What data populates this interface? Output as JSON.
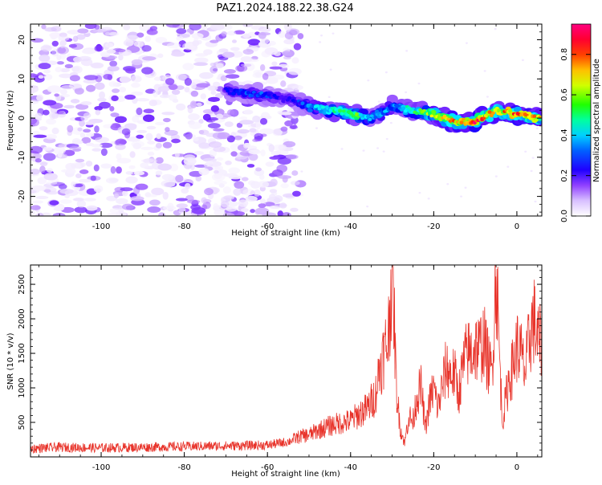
{
  "figure_title": "PAZ1.2024.188.22.38.G24",
  "chart_data": [
    {
      "type": "heatmap",
      "xlabel": "Height of straight line (km)",
      "ylabel": "Frequency (Hz)",
      "xlim": [
        -117,
        6
      ],
      "ylim": [
        -25,
        24
      ],
      "x_ticks": [
        "-100",
        "-80",
        "-60",
        "-40",
        "-20",
        "0"
      ],
      "y_ticks": [
        "-20",
        "-10",
        "0",
        "10",
        "20"
      ],
      "colorbar": {
        "label": "Normalized spectral amplitude",
        "range": [
          0.0,
          0.95
        ],
        "ticks": [
          "0.0",
          "0.2",
          "0.4",
          "0.6",
          "0.8"
        ],
        "colormap": [
          "#ffffff",
          "#e8d8ff",
          "#a060ff",
          "#6010ff",
          "#0000ff",
          "#00a0ff",
          "#00ffff",
          "#00ff60",
          "#80ff00",
          "#ffff00",
          "#ff8000",
          "#ff0000",
          "#ff0080"
        ]
      },
      "signal_ridge": {
        "description_points_x": [
          -70,
          -62,
          -55,
          -50,
          -45,
          -40,
          -35,
          -30,
          -25,
          -20,
          -15,
          -10,
          -5,
          0,
          5
        ],
        "frequency_hz": [
          7,
          6,
          5,
          3,
          2,
          1,
          0,
          3,
          2,
          1,
          -1,
          -1,
          2,
          1,
          0
        ],
        "peak_amplitude": [
          0.25,
          0.3,
          0.2,
          0.35,
          0.45,
          0.6,
          0.4,
          0.35,
          0.5,
          0.65,
          0.75,
          0.85,
          0.7,
          0.8,
          0.7
        ]
      },
      "noise_region_x": [
        -117,
        -52
      ]
    },
    {
      "type": "line",
      "xlabel": "Height of straight line (km)",
      "ylabel": "SNR (10 * v/v)",
      "xlim": [
        -117,
        6
      ],
      "ylim": [
        0,
        2780
      ],
      "x_ticks": [
        "-100",
        "-80",
        "-60",
        "-40",
        "-20",
        "0"
      ],
      "y_ticks": [
        "500",
        "1000",
        "1500",
        "2000",
        "2500"
      ],
      "color": "#e8332a",
      "series": [
        {
          "x": [
            -117,
            -110,
            -100,
            -90,
            -80,
            -70,
            -60,
            -55,
            -52,
            -50,
            -48,
            -45,
            -42,
            -40,
            -38,
            -36,
            -34,
            -33,
            -32,
            -31,
            -30,
            -29.5,
            -29,
            -28,
            -27,
            -26,
            -25,
            -24,
            -23,
            -22,
            -21,
            -20,
            -19,
            -18,
            -17,
            -16,
            -15,
            -14,
            -13,
            -12,
            -11,
            -10,
            -9,
            -8,
            -7,
            -6,
            -5,
            -4.5,
            -4,
            -3.5,
            -3,
            -2,
            -1,
            0,
            1,
            2,
            3,
            4,
            5,
            6
          ],
          "y": [
            120,
            140,
            130,
            140,
            150,
            160,
            170,
            220,
            300,
            320,
            380,
            450,
            500,
            520,
            620,
            700,
            900,
            1300,
            1500,
            1700,
            2780,
            2000,
            1000,
            400,
            200,
            600,
            500,
            900,
            1000,
            400,
            800,
            1000,
            700,
            1000,
            1300,
            1200,
            1200,
            900,
            1300,
            1500,
            1500,
            1600,
            1550,
            1700,
            1400,
            1200,
            2780,
            2000,
            1200,
            500,
            700,
            1100,
            1300,
            1600,
            1500,
            1200,
            1700,
            2000,
            1700,
            1600
          ]
        }
      ]
    }
  ]
}
